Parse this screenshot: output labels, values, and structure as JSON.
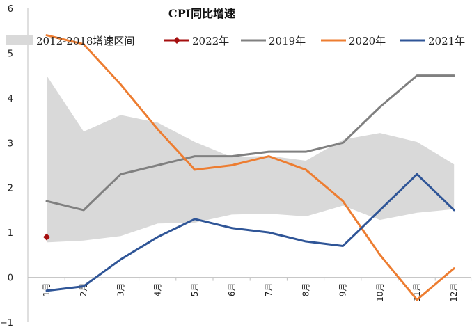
{
  "chart_data": {
    "type": "line",
    "title": "CPI同比增速",
    "xlabel": "",
    "ylabel": "",
    "categories": [
      "1月",
      "2月",
      "3月",
      "4月",
      "5月",
      "6月",
      "7月",
      "8月",
      "9月",
      "10月",
      "11月",
      "12月"
    ],
    "ylim": [
      -1,
      6
    ],
    "yticks": [
      -1,
      0,
      1,
      2,
      3,
      4,
      5,
      6
    ],
    "grid": false,
    "legend_position": "top",
    "band": {
      "name": "2012-2018增速区间",
      "color": "#d9d9d9",
      "upper": [
        4.5,
        3.25,
        3.62,
        3.45,
        3.02,
        2.68,
        2.71,
        2.6,
        3.07,
        3.22,
        3.02,
        2.52
      ],
      "lower": [
        0.78,
        0.82,
        0.92,
        1.2,
        1.22,
        1.4,
        1.42,
        1.36,
        1.6,
        1.28,
        1.44,
        1.52
      ]
    },
    "series": [
      {
        "name": "2022年",
        "color": "#a50f0f",
        "marker": "diamond",
        "values": [
          0.9,
          null,
          null,
          null,
          null,
          null,
          null,
          null,
          null,
          null,
          null,
          null
        ]
      },
      {
        "name": "2019年",
        "color": "#808080",
        "values": [
          1.7,
          1.5,
          2.3,
          2.5,
          2.7,
          2.7,
          2.8,
          2.8,
          3.0,
          3.8,
          4.5,
          4.5
        ]
      },
      {
        "name": "2020年",
        "color": "#ed7d31",
        "values": [
          5.4,
          5.2,
          4.3,
          3.3,
          2.4,
          2.5,
          2.7,
          2.4,
          1.7,
          0.5,
          -0.5,
          0.2
        ]
      },
      {
        "name": "2021年",
        "color": "#2f5597",
        "values": [
          -0.3,
          -0.2,
          0.4,
          0.9,
          1.3,
          1.1,
          1.0,
          0.8,
          0.7,
          1.5,
          2.3,
          1.5
        ]
      }
    ]
  }
}
